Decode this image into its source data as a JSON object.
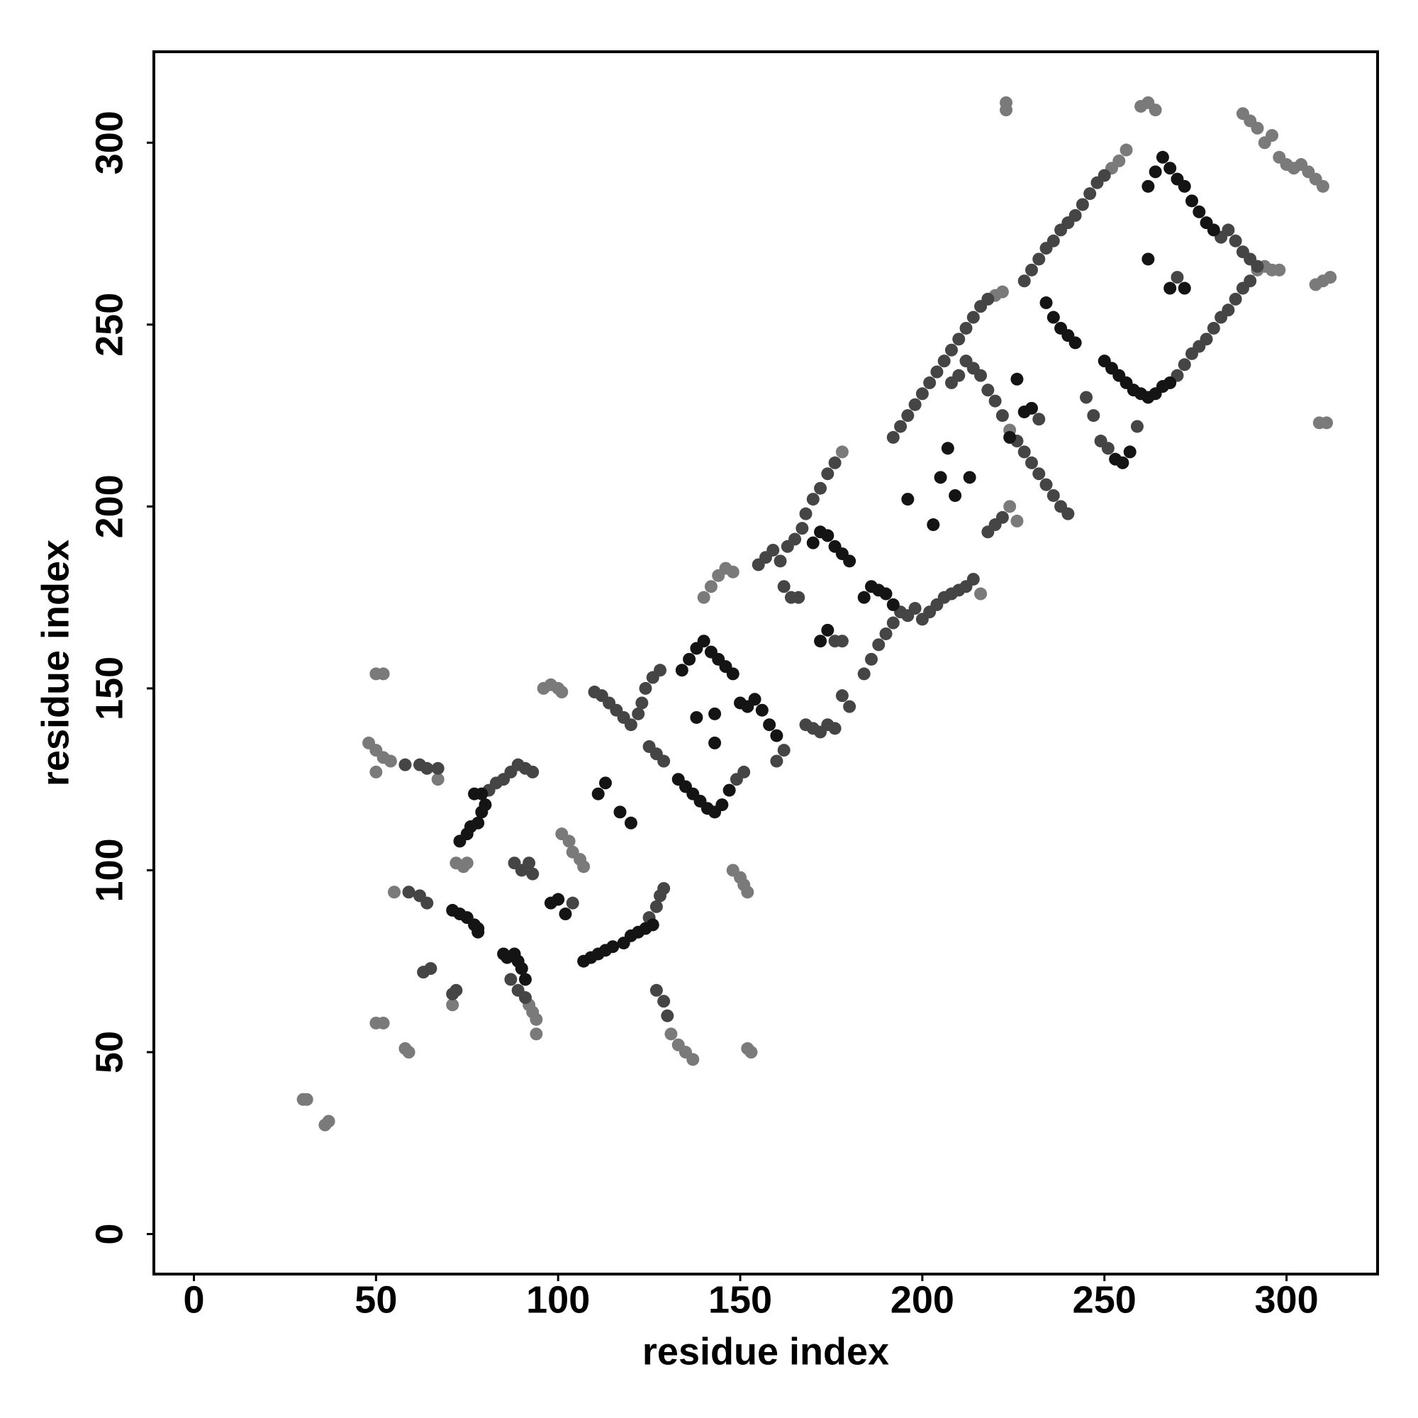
{
  "chart_data": {
    "type": "scatter",
    "xlabel": "residue index",
    "ylabel": "residue index",
    "xlim": [
      -11,
      325
    ],
    "ylim": [
      -11,
      325
    ],
    "xticks": [
      0,
      50,
      100,
      150,
      200,
      250,
      300
    ],
    "yticks": [
      0,
      50,
      100,
      150,
      200,
      250,
      300
    ],
    "grid": false,
    "series": [
      {
        "color": "#7a7a7a",
        "x": [
          30,
          31,
          36,
          37,
          48,
          50,
          52,
          54,
          50,
          50,
          52,
          50,
          52,
          58,
          59,
          55,
          67,
          72,
          74,
          75,
          71,
          92,
          93,
          94,
          94,
          96,
          98,
          100,
          101,
          101,
          103,
          104,
          106,
          107,
          131,
          133,
          135,
          137,
          148,
          150,
          151,
          152,
          140,
          142,
          144,
          146,
          148,
          152,
          153,
          178,
          216,
          220,
          222,
          224,
          224,
          226,
          223,
          223,
          252,
          254,
          256,
          260,
          262,
          264,
          288,
          290,
          292,
          294,
          296,
          298,
          300,
          302,
          304,
          306,
          308,
          310,
          292,
          294,
          296,
          298,
          308,
          310,
          312,
          309,
          311
        ],
        "values": [
          37,
          37,
          30,
          31,
          135,
          133,
          131,
          130,
          127,
          154,
          154,
          58,
          58,
          51,
          50,
          94,
          125,
          102,
          101,
          102,
          63,
          63,
          61,
          59,
          55,
          150,
          151,
          150,
          149,
          110,
          108,
          105,
          103,
          101,
          55,
          52,
          50,
          48,
          100,
          98,
          96,
          94,
          175,
          178,
          181,
          183,
          182,
          51,
          50,
          215,
          176,
          258,
          259,
          221,
          200,
          196,
          311,
          309,
          293,
          295,
          298,
          310,
          311,
          309,
          308,
          306,
          304,
          300,
          302,
          296,
          294,
          293,
          294,
          292,
          290,
          288,
          265,
          266,
          265,
          265,
          261,
          262,
          263,
          223,
          223
        ]
      },
      {
        "color": "#454545",
        "x": [
          59,
          62,
          64,
          58,
          62,
          64,
          67,
          63,
          65,
          71,
          72,
          81,
          83,
          85,
          87,
          89,
          91,
          93,
          88,
          90,
          92,
          93,
          87,
          89,
          91,
          104,
          125,
          127,
          128,
          129,
          127,
          129,
          130,
          110,
          112,
          114,
          116,
          118,
          120,
          122,
          123,
          124,
          126,
          128,
          125,
          127,
          129,
          149,
          151,
          162,
          160,
          155,
          157,
          159,
          161,
          163,
          165,
          167,
          168,
          170,
          172,
          174,
          176,
          162,
          164,
          166,
          168,
          170,
          172,
          174,
          176,
          176,
          178,
          178,
          180,
          184,
          186,
          188,
          190,
          192,
          194,
          196,
          198,
          200,
          202,
          204,
          206,
          208,
          210,
          212,
          214,
          192,
          194,
          196,
          198,
          200,
          202,
          204,
          206,
          208,
          210,
          212,
          214,
          216,
          218,
          208,
          210,
          212,
          214,
          216,
          218,
          220,
          222,
          226,
          228,
          230,
          232,
          234,
          236,
          238,
          240,
          218,
          220,
          222,
          232,
          228,
          230,
          232,
          234,
          236,
          238,
          240,
          242,
          244,
          246,
          248,
          250,
          245,
          247,
          249,
          251,
          259,
          270,
          272,
          274,
          276,
          278,
          280,
          282,
          284,
          286,
          288,
          290,
          282,
          284,
          286,
          288,
          290,
          292,
          270
        ],
        "values": [
          94,
          93,
          91,
          129,
          129,
          128,
          128,
          72,
          73,
          66,
          67,
          122,
          124,
          125,
          127,
          129,
          128,
          127,
          102,
          100,
          102,
          99,
          70,
          67,
          65,
          91,
          87,
          90,
          93,
          95,
          67,
          64,
          60,
          149,
          148,
          146,
          144,
          142,
          140,
          143,
          146,
          150,
          153,
          155,
          134,
          132,
          130,
          125,
          127,
          133,
          130,
          184,
          186,
          188,
          185,
          189,
          191,
          194,
          198,
          202,
          205,
          209,
          212,
          178,
          175,
          175,
          140,
          139,
          138,
          140,
          139,
          163,
          163,
          148,
          145,
          154,
          158,
          162,
          165,
          168,
          171,
          170,
          172,
          169,
          171,
          173,
          175,
          176,
          177,
          178,
          180,
          219,
          222,
          225,
          228,
          231,
          234,
          237,
          240,
          243,
          246,
          249,
          252,
          255,
          257,
          234,
          236,
          240,
          238,
          236,
          232,
          229,
          225,
          218,
          215,
          212,
          209,
          206,
          203,
          200,
          198,
          193,
          195,
          197,
          224,
          262,
          265,
          268,
          271,
          273,
          276,
          278,
          280,
          283,
          286,
          289,
          291,
          230,
          225,
          218,
          216,
          222,
          236,
          239,
          242,
          244,
          246,
          249,
          252,
          254,
          257,
          260,
          262,
          274,
          276,
          273,
          270,
          268,
          266,
          263
        ]
      },
      {
        "color": "#141414",
        "x": [
          71,
          73,
          75,
          77,
          78,
          78,
          73,
          75,
          76,
          78,
          79,
          80,
          77,
          79,
          85,
          86,
          88,
          89,
          90,
          91,
          98,
          100,
          102,
          107,
          109,
          111,
          113,
          115,
          118,
          120,
          122,
          124,
          126,
          111,
          113,
          117,
          120,
          133,
          135,
          137,
          139,
          141,
          143,
          145,
          147,
          134,
          136,
          138,
          140,
          142,
          144,
          146,
          148,
          138,
          143,
          143,
          150,
          152,
          154,
          156,
          158,
          160,
          170,
          172,
          174,
          176,
          178,
          180,
          172,
          174,
          184,
          186,
          188,
          190,
          192,
          196,
          203,
          205,
          207,
          209,
          213,
          224,
          226,
          228,
          230,
          234,
          236,
          238,
          240,
          242,
          250,
          252,
          254,
          256,
          258,
          260,
          262,
          264,
          266,
          268,
          262,
          264,
          266,
          268,
          270,
          272,
          274,
          276,
          278,
          280,
          262,
          268,
          272,
          253,
          255,
          257
        ],
        "values": [
          89,
          88,
          87,
          85,
          84,
          83,
          108,
          110,
          112,
          113,
          116,
          118,
          121,
          121,
          77,
          76,
          77,
          75,
          73,
          70,
          91,
          92,
          88,
          75,
          76,
          77,
          78,
          79,
          80,
          82,
          83,
          84,
          85,
          121,
          124,
          116,
          113,
          125,
          123,
          121,
          119,
          117,
          116,
          118,
          122,
          155,
          158,
          161,
          163,
          160,
          158,
          156,
          154,
          142,
          143,
          135,
          146,
          145,
          147,
          144,
          140,
          137,
          190,
          193,
          192,
          189,
          187,
          185,
          163,
          166,
          175,
          178,
          177,
          176,
          173,
          202,
          195,
          208,
          216,
          203,
          208,
          219,
          235,
          226,
          227,
          256,
          252,
          249,
          247,
          245,
          240,
          238,
          236,
          234,
          232,
          231,
          230,
          231,
          233,
          234,
          288,
          292,
          296,
          293,
          290,
          288,
          284,
          281,
          278,
          276,
          268,
          260,
          260,
          213,
          212,
          215
        ]
      }
    ]
  }
}
